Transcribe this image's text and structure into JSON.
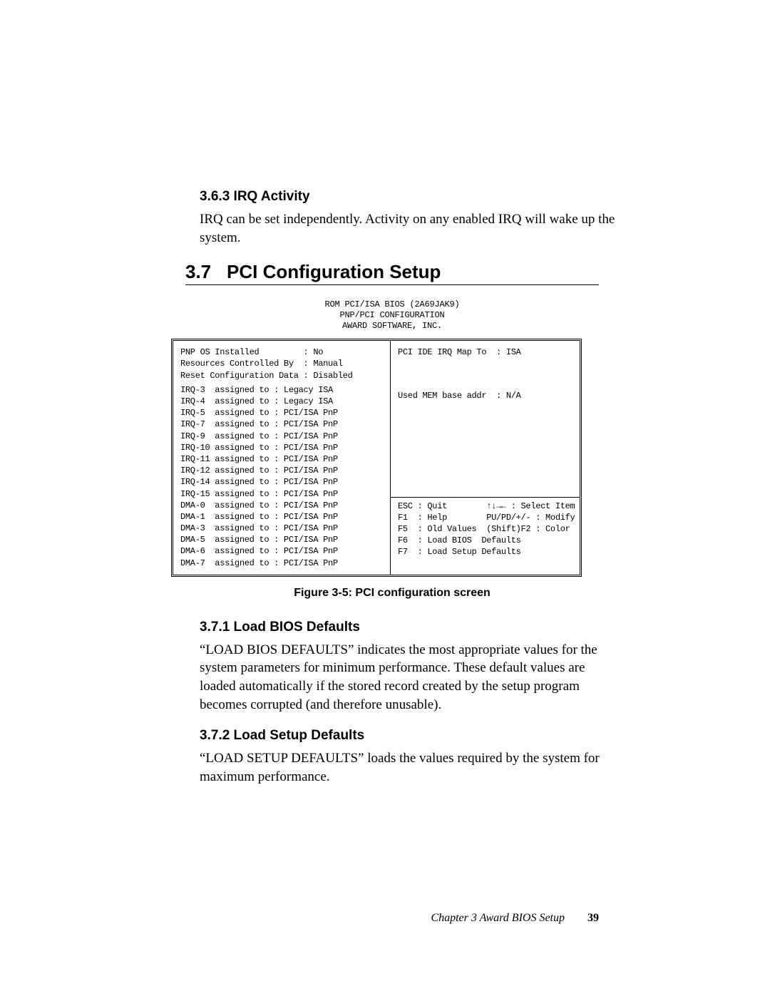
{
  "section363": {
    "heading": "3.6.3 IRQ Activity",
    "body": "IRQ can be set independently. Activity on any enabled IRQ will wake up the system."
  },
  "section37": {
    "number": "3.7",
    "title": "PCI Configuration Setup"
  },
  "bios": {
    "header_l1": "ROM PCI/ISA BIOS (2A69JAK9)",
    "header_l2": "PNP/PCI CONFIGURATION",
    "header_l3": "AWARD SOFTWARE, INC.",
    "left_top": "PNP OS Installed         : No\nResources Controlled By  : Manual\nReset Configuration Data : Disabled",
    "left_bottom": "IRQ-3  assigned to : Legacy ISA\nIRQ-4  assigned to : Legacy ISA\nIRQ-5  assigned to : PCI/ISA PnP\nIRQ-7  assigned to : PCI/ISA PnP\nIRQ-9  assigned to : PCI/ISA PnP\nIRQ-10 assigned to : PCI/ISA PnP\nIRQ-11 assigned to : PCI/ISA PnP\nIRQ-12 assigned to : PCI/ISA PnP\nIRQ-14 assigned to : PCI/ISA PnP\nIRQ-15 assigned to : PCI/ISA PnP\nDMA-0  assigned to : PCI/ISA PnP\nDMA-1  assigned to : PCI/ISA PnP\nDMA-3  assigned to : PCI/ISA PnP\nDMA-5  assigned to : PCI/ISA PnP\nDMA-6  assigned to : PCI/ISA PnP\nDMA-7  assigned to : PCI/ISA PnP",
    "right_top": "PCI IDE IRQ Map To  : ISA",
    "right_mid": "Used MEM base addr  : N/A\n\n\n\n\n\n\n\n\n",
    "right_bottom": "ESC : Quit        ↑↓→← : Select Item\nF1  : Help        PU/PD/+/- : Modify\nF5  : Old Values  (Shift)F2 : Color\nF6  : Load BIOS  Defaults\nF7  : Load Setup Defaults"
  },
  "figure_caption": "Figure 3-5: PCI configuration screen",
  "section371": {
    "heading": "3.7.1 Load BIOS Defaults",
    "body": "“LOAD BIOS DEFAULTS” indicates the most appropriate values for the system parameters for minimum performance. These default values are loaded automatically if the stored record created by the setup program becomes corrupted (and therefore unusable)."
  },
  "section372": {
    "heading": "3.7.2 Load Setup Defaults",
    "body": "“LOAD SETUP DEFAULTS” loads the values required by the system for maximum performance."
  },
  "footer": {
    "chapter": "Chapter 3  Award BIOS Setup",
    "page": "39"
  }
}
